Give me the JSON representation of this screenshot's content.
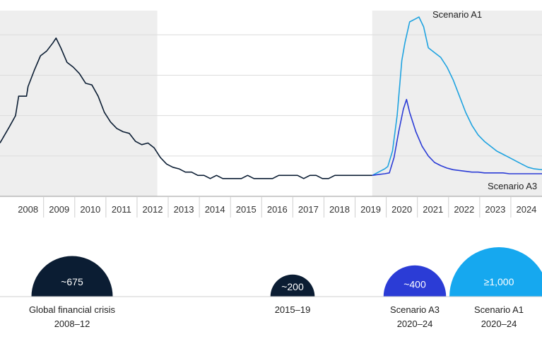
{
  "chart_data": [
    {
      "type": "line",
      "title": "",
      "xlabel": "",
      "ylabel": "",
      "x_ticks": [
        "2008",
        "2009",
        "2010",
        "2011",
        "2012",
        "2013",
        "2014",
        "2015",
        "2016",
        "2017",
        "2018",
        "2019",
        "2020",
        "2021",
        "2022",
        "2023",
        "2024"
      ],
      "xlim": [
        2007.6,
        2025.0
      ],
      "ylim": [
        0,
        1150
      ],
      "grid": true,
      "shaded_ranges": [
        [
          2007.6,
          2012.65
        ],
        [
          2019.55,
          2025.0
        ]
      ],
      "series": [
        {
          "name": "",
          "color": "#0b1d33",
          "points": [
            [
              2007.6,
              330
            ],
            [
              2007.9,
              430
            ],
            [
              2008.1,
              500
            ],
            [
              2008.2,
              620
            ],
            [
              2008.45,
              620
            ],
            [
              2008.5,
              680
            ],
            [
              2008.7,
              780
            ],
            [
              2008.9,
              870
            ],
            [
              2009.1,
              900
            ],
            [
              2009.3,
              950
            ],
            [
              2009.4,
              980
            ],
            [
              2009.55,
              920
            ],
            [
              2009.75,
              830
            ],
            [
              2009.95,
              800
            ],
            [
              2010.15,
              760
            ],
            [
              2010.35,
              700
            ],
            [
              2010.55,
              690
            ],
            [
              2010.75,
              620
            ],
            [
              2010.95,
              520
            ],
            [
              2011.15,
              460
            ],
            [
              2011.35,
              420
            ],
            [
              2011.55,
              400
            ],
            [
              2011.75,
              390
            ],
            [
              2011.95,
              340
            ],
            [
              2012.15,
              320
            ],
            [
              2012.35,
              330
            ],
            [
              2012.55,
              300
            ],
            [
              2012.75,
              240
            ],
            [
              2012.95,
              200
            ],
            [
              2013.15,
              180
            ],
            [
              2013.35,
              170
            ],
            [
              2013.55,
              150
            ],
            [
              2013.75,
              150
            ],
            [
              2013.95,
              130
            ],
            [
              2014.15,
              130
            ],
            [
              2014.35,
              110
            ],
            [
              2014.55,
              130
            ],
            [
              2014.75,
              110
            ],
            [
              2014.95,
              110
            ],
            [
              2015.15,
              110
            ],
            [
              2015.35,
              110
            ],
            [
              2015.55,
              130
            ],
            [
              2015.75,
              110
            ],
            [
              2015.95,
              110
            ],
            [
              2016.15,
              110
            ],
            [
              2016.35,
              110
            ],
            [
              2016.55,
              130
            ],
            [
              2016.75,
              130
            ],
            [
              2016.95,
              130
            ],
            [
              2017.15,
              130
            ],
            [
              2017.35,
              110
            ],
            [
              2017.55,
              130
            ],
            [
              2017.75,
              130
            ],
            [
              2017.95,
              110
            ],
            [
              2018.15,
              110
            ],
            [
              2018.35,
              130
            ],
            [
              2018.55,
              130
            ],
            [
              2018.75,
              130
            ],
            [
              2018.95,
              130
            ],
            [
              2019.15,
              130
            ],
            [
              2019.35,
              130
            ],
            [
              2019.55,
              130
            ]
          ]
        },
        {
          "name": "Scenario A1",
          "color": "#1fa3e0",
          "points": [
            [
              2019.55,
              130
            ],
            [
              2019.75,
              150
            ],
            [
              2019.95,
              170
            ],
            [
              2020.05,
              185
            ],
            [
              2020.2,
              280
            ],
            [
              2020.35,
              500
            ],
            [
              2020.5,
              840
            ],
            [
              2020.6,
              950
            ],
            [
              2020.75,
              1080
            ],
            [
              2020.95,
              1100
            ],
            [
              2021.05,
              1110
            ],
            [
              2021.2,
              1050
            ],
            [
              2021.35,
              920
            ],
            [
              2021.55,
              890
            ],
            [
              2021.75,
              860
            ],
            [
              2021.95,
              800
            ],
            [
              2022.15,
              720
            ],
            [
              2022.35,
              620
            ],
            [
              2022.55,
              520
            ],
            [
              2022.75,
              440
            ],
            [
              2022.95,
              380
            ],
            [
              2023.15,
              340
            ],
            [
              2023.35,
              310
            ],
            [
              2023.55,
              280
            ],
            [
              2023.75,
              260
            ],
            [
              2023.95,
              240
            ],
            [
              2024.15,
              220
            ],
            [
              2024.35,
              200
            ],
            [
              2024.55,
              180
            ],
            [
              2024.75,
              170
            ],
            [
              2025.0,
              165
            ]
          ]
        },
        {
          "name": "Scenario A3",
          "color": "#2b3cd6",
          "points": [
            [
              2019.55,
              130
            ],
            [
              2019.75,
              135
            ],
            [
              2019.95,
              140
            ],
            [
              2020.1,
              145
            ],
            [
              2020.25,
              240
            ],
            [
              2020.4,
              400
            ],
            [
              2020.55,
              540
            ],
            [
              2020.65,
              600
            ],
            [
              2020.75,
              520
            ],
            [
              2020.95,
              400
            ],
            [
              2021.15,
              310
            ],
            [
              2021.35,
              250
            ],
            [
              2021.55,
              210
            ],
            [
              2021.75,
              190
            ],
            [
              2021.95,
              175
            ],
            [
              2022.15,
              165
            ],
            [
              2022.35,
              160
            ],
            [
              2022.55,
              155
            ],
            [
              2022.75,
              150
            ],
            [
              2022.95,
              150
            ],
            [
              2023.15,
              145
            ],
            [
              2023.35,
              145
            ],
            [
              2023.55,
              145
            ],
            [
              2023.75,
              145
            ],
            [
              2023.95,
              140
            ],
            [
              2024.15,
              140
            ],
            [
              2024.35,
              140
            ],
            [
              2024.55,
              140
            ],
            [
              2024.75,
              140
            ],
            [
              2025.0,
              140
            ]
          ]
        }
      ],
      "annotations": [
        {
          "text": "Scenario A1",
          "series": "Scenario A1"
        },
        {
          "text": "Scenario A3",
          "series": "Scenario A3"
        }
      ]
    },
    {
      "type": "bubble",
      "title": "",
      "items": [
        {
          "label": "~675",
          "caption": [
            "Global financial crisis",
            "2008–12"
          ],
          "value": 675,
          "color": "#0b1d33"
        },
        {
          "label": "~200",
          "caption": [
            "2015–19"
          ],
          "value": 200,
          "color": "#0b1d33"
        },
        {
          "label": "~400",
          "caption": [
            "Scenario A3",
            "2020–24"
          ],
          "value": 400,
          "color": "#2b3cd6"
        },
        {
          "label": "≥1,000",
          "caption": [
            "Scenario A1",
            "2020–24"
          ],
          "value": 1000,
          "color": "#16a8ef"
        }
      ]
    }
  ]
}
